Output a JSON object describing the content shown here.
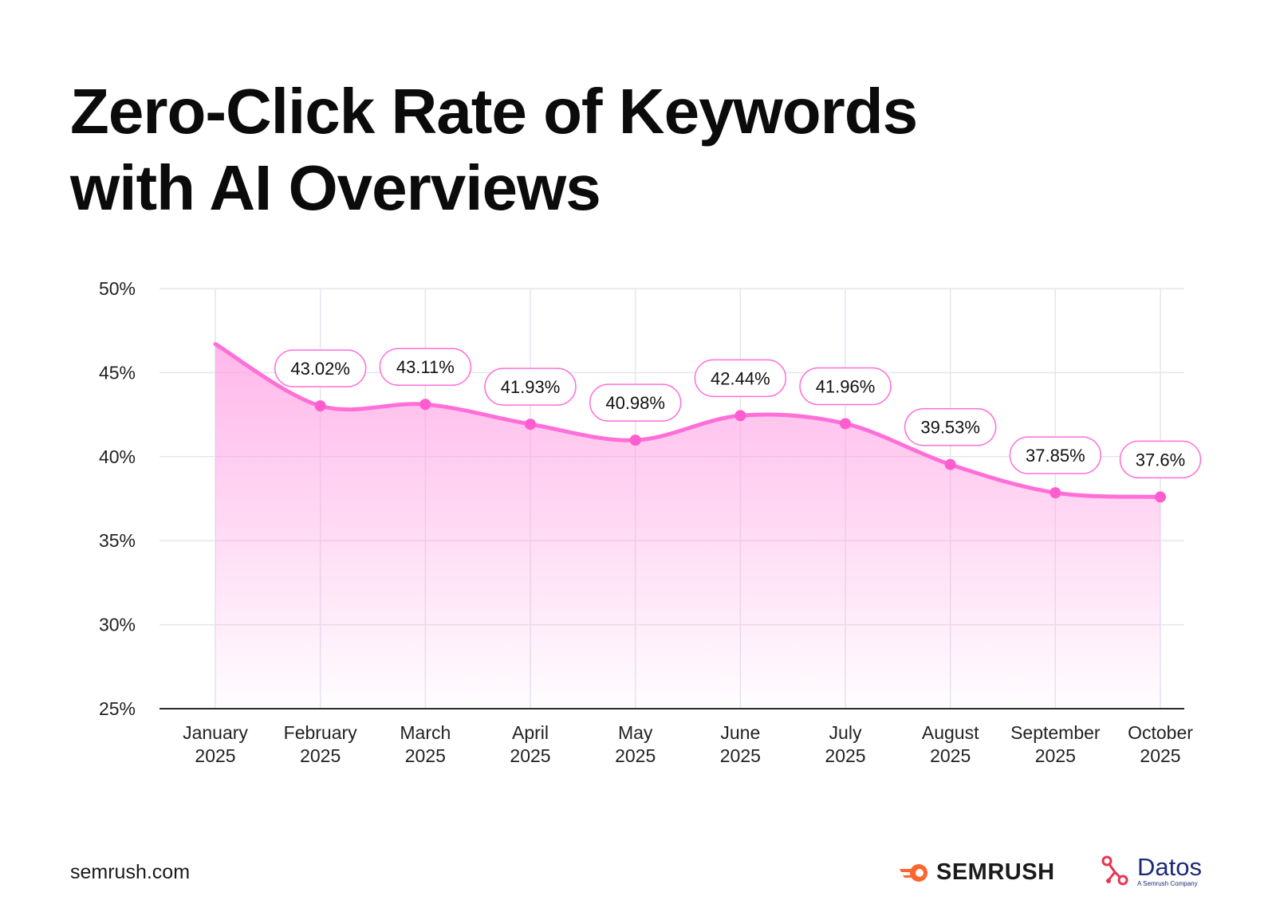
{
  "title_lines": [
    "Zero-Click Rate of Keywords",
    "with AI Overviews"
  ],
  "footer": {
    "url": "semrush.com",
    "semrush_logo": "SEMRUSH",
    "datos_logo": "Datos",
    "datos_tagline": "A Semrush Company"
  },
  "colors": {
    "line": "#ff6fd8",
    "point": "#ff5ccf",
    "area_top": "#ff9fe3",
    "grid": "#e4e6ee",
    "axis": "#2a2a2a",
    "text": "#111111",
    "semrush_orange": "#ff642d",
    "datos_red": "#e8344f",
    "datos_navy": "#1c2a78"
  },
  "chart_data": {
    "type": "area",
    "title": "Zero-Click Rate of Keywords with AI Overviews",
    "categories": [
      [
        "January",
        "2025"
      ],
      [
        "February",
        "2025"
      ],
      [
        "March",
        "2025"
      ],
      [
        "April",
        "2025"
      ],
      [
        "May",
        "2025"
      ],
      [
        "June",
        "2025"
      ],
      [
        "July",
        "2025"
      ],
      [
        "August",
        "2025"
      ],
      [
        "September",
        "2025"
      ],
      [
        "October",
        "2025"
      ]
    ],
    "values": [
      46.7,
      43.02,
      43.11,
      41.93,
      40.98,
      42.44,
      41.96,
      39.53,
      37.85,
      37.6
    ],
    "data_labels": [
      null,
      "43.02%",
      "43.11%",
      "41.93%",
      "40.98%",
      "42.44%",
      "41.96%",
      "39.53%",
      "37.85%",
      "37.6%"
    ],
    "yticks": [
      25,
      30,
      35,
      40,
      45,
      50
    ],
    "ytick_labels": [
      "25%",
      "30%",
      "35%",
      "40%",
      "45%",
      "50%"
    ],
    "ylim": [
      25,
      50
    ],
    "xlabel": "",
    "ylabel": "",
    "grid": true,
    "smooth": true
  }
}
